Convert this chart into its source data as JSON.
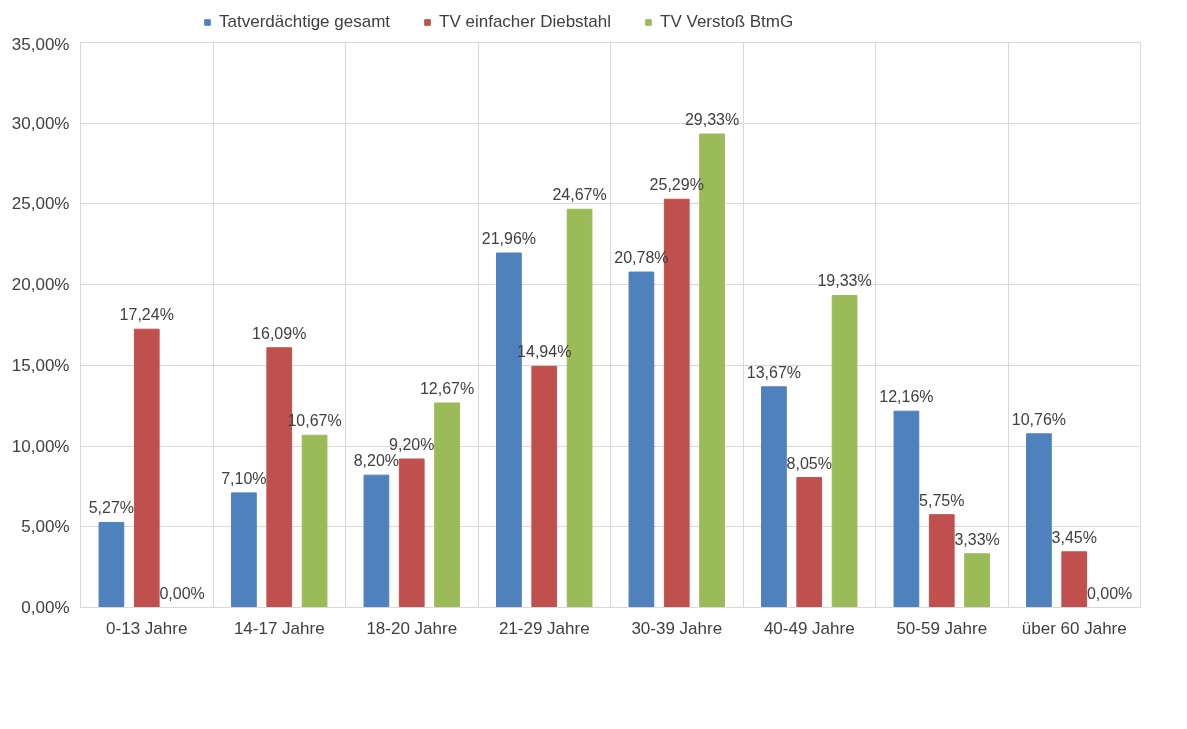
{
  "chart_data": {
    "type": "bar",
    "categories": [
      "0-13 Jahre",
      "14-17 Jahre",
      "18-20 Jahre",
      "21-29 Jahre",
      "30-39 Jahre",
      "40-49 Jahre",
      "50-59 Jahre",
      "über 60 Jahre"
    ],
    "series": [
      {
        "name": "Tatverdächtige gesamt",
        "color": "#4f81bd",
        "values": [
          5.27,
          7.1,
          8.2,
          21.96,
          20.78,
          13.67,
          12.16,
          10.76
        ],
        "value_labels": [
          "5,27%",
          "7,10%",
          "8,20%",
          "21,96%",
          "20,78%",
          "13,67%",
          "12,16%",
          "10,76%"
        ]
      },
      {
        "name": "TV einfacher Diebstahl",
        "color": "#c0504d",
        "values": [
          17.24,
          16.09,
          9.2,
          14.94,
          25.29,
          8.05,
          5.75,
          3.45
        ],
        "value_labels": [
          "17,24%",
          "16,09%",
          "9,20%",
          "14,94%",
          "25,29%",
          "8,05%",
          "5,75%",
          "3,45%"
        ]
      },
      {
        "name": "TV Verstoß BtmG",
        "color": "#9bbb59",
        "values": [
          0.0,
          10.67,
          12.67,
          24.67,
          29.33,
          19.33,
          3.33,
          0.0
        ],
        "value_labels": [
          "0,00%",
          "10,67%",
          "12,67%",
          "24,67%",
          "29,33%",
          "19,33%",
          "3,33%",
          "0,00%"
        ]
      }
    ],
    "ylim": [
      0,
      35
    ],
    "yticks": [
      {
        "value": 0,
        "label": "0,00%"
      },
      {
        "value": 5,
        "label": "5,00%"
      },
      {
        "value": 10,
        "label": "10,00%"
      },
      {
        "value": 15,
        "label": "15,00%"
      },
      {
        "value": 20,
        "label": "20,00%"
      },
      {
        "value": 25,
        "label": "25,00%"
      },
      {
        "value": 30,
        "label": "30,00%"
      },
      {
        "value": 35,
        "label": "35,00%"
      }
    ],
    "grid": true,
    "legend": "top",
    "data_labels": true
  }
}
